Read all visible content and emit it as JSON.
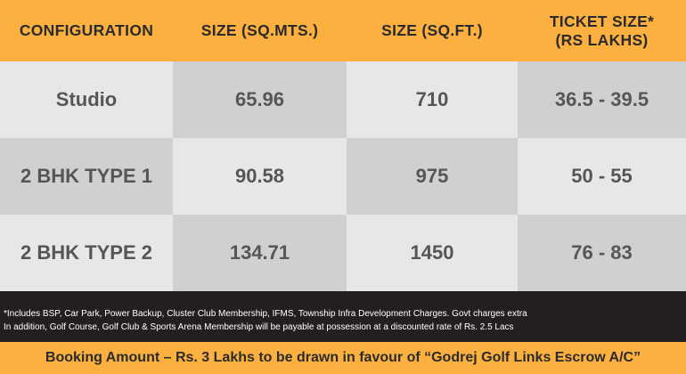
{
  "table": {
    "headers": [
      "CONFIGURATION",
      "SIZE (SQ.MTS.)",
      "SIZE (SQ.FT.)",
      "TICKET SIZE*\n(RS LAKHS)"
    ],
    "rows": [
      [
        "Studio",
        "65.96",
        "710",
        "36.5 - 39.5"
      ],
      [
        "2 BHK TYPE 1",
        "90.58",
        "975",
        "50 - 55"
      ],
      [
        "2 BHK TYPE 2",
        "134.71",
        "1450",
        "76 - 83"
      ]
    ]
  },
  "notes": [
    "*Includes BSP, Car Park, Power Backup, Cluster Club Membership, IFMS, Township Infra Development Charges. Govt charges extra",
    "In addition, Golf Course, Golf Club & Sports Arena Membership will be payable at possession at a discounted rate of Rs. 2.5 Lacs"
  ],
  "booking": "Booking Amount – Rs. 3 Lakhs to be drawn in favour of “Godrej Golf Links Escrow A/C”",
  "colors": {
    "header_bg": "#fbb03f",
    "cell_light": "#e7e7e7",
    "cell_dark": "#d0d0d0",
    "notes_bg": "#231f20"
  }
}
